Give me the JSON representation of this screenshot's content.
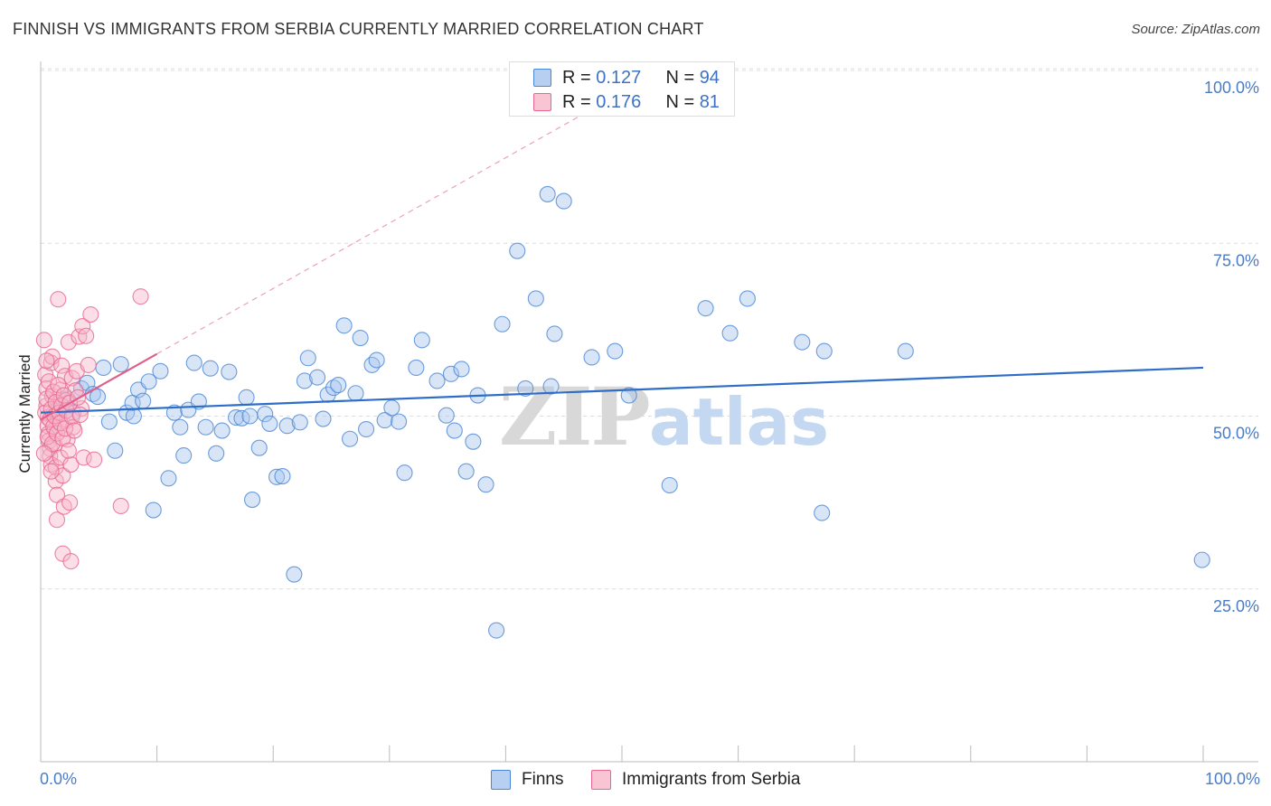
{
  "header": {
    "title": "FINNISH VS IMMIGRANTS FROM SERBIA CURRENTLY MARRIED CORRELATION CHART",
    "source": "Source: ZipAtlas.com"
  },
  "legend_top": {
    "rows": [
      {
        "r_label": "R = ",
        "r_value": "0.127",
        "n_label": "N = ",
        "n_value": "94"
      },
      {
        "r_label": "R = ",
        "r_value": "0.176",
        "n_label": "N = ",
        "n_value": "81"
      }
    ]
  },
  "watermark": {
    "zip": "ZIP",
    "atlas": "atlas"
  },
  "colors": {
    "finns": "#4a86d4",
    "finns_fill": "#a9c6ee",
    "serbia": "#e8678f",
    "serbia_fill": "#f6b6c9",
    "trend_blue": "#2f6ec7",
    "trend_pink": "#e0608a",
    "axis_text": "#4a7cc7"
  },
  "chart_data": {
    "type": "scatter",
    "title": "FINNISH VS IMMIGRANTS FROM SERBIA CURRENTLY MARRIED CORRELATION CHART",
    "xlabel": "",
    "ylabel": "Currently Married",
    "xlim": [
      0,
      100
    ],
    "ylim": [
      0,
      100
    ],
    "x_tick_labels": [
      "0.0%",
      "100.0%"
    ],
    "y_ticks": [
      {
        "value": 25,
        "label": "25.0%"
      },
      {
        "value": 50,
        "label": "50.0%"
      },
      {
        "value": 75,
        "label": "75.0%"
      },
      {
        "value": 100,
        "label": "100.0%"
      }
    ],
    "grid": true,
    "legend_position": "bottom",
    "series": [
      {
        "name": "Finns",
        "r": 0.127,
        "n": 94,
        "trend": {
          "x": [
            0,
            100
          ],
          "y": [
            50.5,
            57.0
          ]
        },
        "points": [
          [
            1.5,
            50.8
          ],
          [
            2.3,
            52.5
          ],
          [
            2.8,
            50.5
          ],
          [
            3.5,
            54.0
          ],
          [
            4.0,
            54.8
          ],
          [
            4.5,
            53.2
          ],
          [
            4.9,
            52.8
          ],
          [
            5.4,
            57.0
          ],
          [
            5.9,
            49.2
          ],
          [
            6.4,
            45.0
          ],
          [
            6.9,
            57.5
          ],
          [
            7.4,
            50.5
          ],
          [
            7.9,
            51.9
          ],
          [
            8.4,
            53.8
          ],
          [
            8.8,
            52.2
          ],
          [
            9.3,
            55.0
          ],
          [
            9.7,
            36.4
          ],
          [
            10.3,
            56.5
          ],
          [
            11.0,
            41.0
          ],
          [
            11.5,
            50.5
          ],
          [
            12.0,
            48.4
          ],
          [
            12.3,
            44.3
          ],
          [
            12.7,
            50.9
          ],
          [
            13.2,
            57.7
          ],
          [
            13.6,
            52.1
          ],
          [
            14.2,
            48.4
          ],
          [
            14.6,
            56.9
          ],
          [
            15.1,
            44.6
          ],
          [
            15.6,
            47.9
          ],
          [
            16.2,
            56.4
          ],
          [
            16.8,
            49.8
          ],
          [
            17.3,
            49.7
          ],
          [
            17.7,
            52.7
          ],
          [
            18.2,
            37.9
          ],
          [
            18.8,
            45.4
          ],
          [
            19.3,
            50.3
          ],
          [
            19.7,
            48.9
          ],
          [
            20.3,
            41.2
          ],
          [
            20.8,
            41.3
          ],
          [
            21.2,
            48.6
          ],
          [
            21.8,
            27.1
          ],
          [
            22.3,
            49.1
          ],
          [
            22.7,
            55.1
          ],
          [
            23.0,
            58.4
          ],
          [
            23.8,
            55.6
          ],
          [
            24.3,
            49.6
          ],
          [
            24.7,
            53.1
          ],
          [
            25.2,
            54.1
          ],
          [
            25.6,
            54.5
          ],
          [
            26.1,
            63.1
          ],
          [
            26.6,
            46.7
          ],
          [
            27.1,
            53.3
          ],
          [
            27.5,
            61.3
          ],
          [
            28.0,
            48.1
          ],
          [
            28.5,
            57.4
          ],
          [
            28.9,
            58.1
          ],
          [
            29.6,
            49.4
          ],
          [
            30.2,
            51.2
          ],
          [
            30.8,
            49.2
          ],
          [
            31.3,
            41.8
          ],
          [
            32.3,
            57.0
          ],
          [
            32.8,
            61.0
          ],
          [
            34.1,
            55.1
          ],
          [
            34.9,
            50.1
          ],
          [
            35.3,
            56.1
          ],
          [
            35.6,
            47.9
          ],
          [
            36.2,
            56.8
          ],
          [
            36.6,
            42.0
          ],
          [
            37.2,
            46.3
          ],
          [
            37.6,
            53.0
          ],
          [
            38.3,
            40.1
          ],
          [
            39.2,
            19.0
          ],
          [
            39.7,
            63.3
          ],
          [
            41.0,
            73.9
          ],
          [
            41.7,
            54.0
          ],
          [
            42.6,
            67.0
          ],
          [
            43.6,
            82.1
          ],
          [
            43.9,
            54.3
          ],
          [
            44.2,
            61.9
          ],
          [
            45.0,
            81.1
          ],
          [
            47.4,
            58.5
          ],
          [
            49.4,
            59.4
          ],
          [
            50.6,
            53.0
          ],
          [
            54.1,
            40.0
          ],
          [
            57.2,
            65.6
          ],
          [
            59.3,
            62.0
          ],
          [
            60.8,
            67.0
          ],
          [
            65.5,
            60.7
          ],
          [
            67.2,
            36.0
          ],
          [
            67.4,
            59.4
          ],
          [
            74.4,
            59.4
          ],
          [
            99.9,
            29.2
          ],
          [
            8.0,
            50.0
          ],
          [
            18.0,
            50.0
          ]
        ]
      },
      {
        "name": "Immigrants from Serbia",
        "r": 0.176,
        "n": 81,
        "trend": {
          "x": [
            0,
            10
          ],
          "y": [
            49.5,
            59.0
          ]
        },
        "trend_extension": {
          "x": [
            10,
            47
          ],
          "y": [
            59.0,
            94.0
          ]
        },
        "points": [
          [
            0.3,
            61.0
          ],
          [
            0.4,
            56.0
          ],
          [
            0.5,
            54.0
          ],
          [
            0.5,
            51.5
          ],
          [
            0.6,
            49.8
          ],
          [
            0.6,
            48.6
          ],
          [
            0.7,
            47.5
          ],
          [
            0.7,
            46.4
          ],
          [
            0.8,
            45.3
          ],
          [
            0.8,
            44.2
          ],
          [
            0.9,
            43.0
          ],
          [
            0.9,
            57.7
          ],
          [
            1.0,
            58.6
          ],
          [
            1.0,
            52.9
          ],
          [
            1.1,
            50.3
          ],
          [
            1.2,
            48.0
          ],
          [
            1.2,
            45.8
          ],
          [
            1.3,
            42.6
          ],
          [
            1.3,
            40.6
          ],
          [
            1.4,
            38.6
          ],
          [
            1.4,
            35.0
          ],
          [
            1.5,
            66.9
          ],
          [
            1.5,
            51.8
          ],
          [
            1.6,
            49.1
          ],
          [
            1.7,
            53.8
          ],
          [
            1.7,
            44.0
          ],
          [
            1.8,
            57.3
          ],
          [
            1.9,
            41.4
          ],
          [
            1.9,
            30.1
          ],
          [
            2.0,
            36.9
          ],
          [
            2.1,
            55.8
          ],
          [
            2.2,
            52.3
          ],
          [
            2.3,
            49.4
          ],
          [
            2.3,
            46.6
          ],
          [
            2.4,
            60.7
          ],
          [
            2.5,
            37.5
          ],
          [
            2.6,
            43.0
          ],
          [
            2.6,
            29.0
          ],
          [
            2.7,
            55.5
          ],
          [
            2.8,
            48.4
          ],
          [
            3.0,
            53.7
          ],
          [
            3.1,
            56.5
          ],
          [
            3.3,
            61.5
          ],
          [
            3.5,
            51.1
          ],
          [
            3.6,
            63.0
          ],
          [
            3.7,
            44.0
          ],
          [
            3.9,
            61.6
          ],
          [
            4.1,
            57.4
          ],
          [
            4.3,
            64.7
          ],
          [
            4.6,
            43.7
          ],
          [
            6.9,
            37.0
          ],
          [
            8.6,
            67.3
          ],
          [
            0.4,
            50.5
          ],
          [
            0.5,
            52.5
          ],
          [
            0.6,
            47.0
          ],
          [
            0.7,
            55.0
          ],
          [
            0.8,
            49.5
          ],
          [
            0.9,
            51.0
          ],
          [
            1.0,
            46.0
          ],
          [
            1.1,
            53.5
          ],
          [
            1.1,
            48.5
          ],
          [
            1.2,
            50.0
          ],
          [
            1.3,
            52.0
          ],
          [
            1.4,
            47.5
          ],
          [
            1.5,
            54.5
          ],
          [
            1.6,
            50.5
          ],
          [
            1.7,
            49.0
          ],
          [
            1.8,
            51.5
          ],
          [
            1.9,
            46.8
          ],
          [
            2.0,
            53.0
          ],
          [
            2.1,
            48.2
          ],
          [
            2.2,
            50.8
          ],
          [
            2.4,
            45.0
          ],
          [
            2.5,
            51.9
          ],
          [
            2.7,
            49.9
          ],
          [
            2.9,
            47.9
          ],
          [
            3.2,
            52.7
          ],
          [
            3.4,
            50.2
          ],
          [
            0.3,
            44.6
          ],
          [
            0.5,
            58.0
          ],
          [
            0.9,
            42.0
          ]
        ]
      }
    ]
  },
  "bottom_legend": {
    "items": [
      {
        "label": "Finns"
      },
      {
        "label": "Immigrants from Serbia"
      }
    ]
  }
}
